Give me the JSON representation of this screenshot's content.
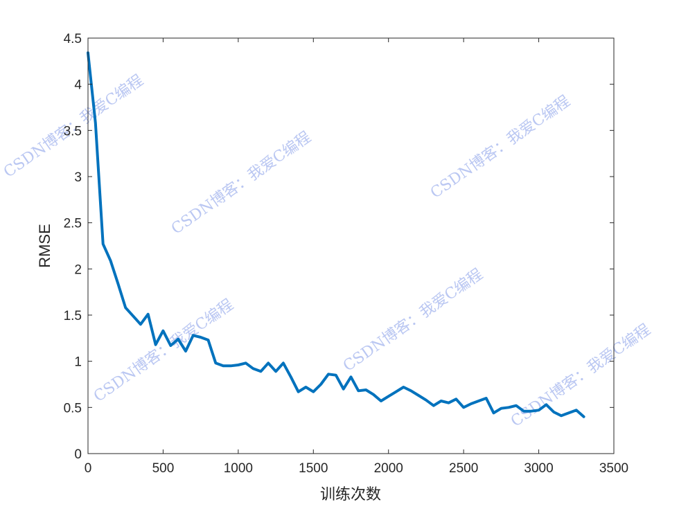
{
  "chart_data": {
    "type": "line",
    "xlabel": "训练次数",
    "ylabel": "RMSE",
    "xlim": [
      0,
      3500
    ],
    "ylim": [
      0,
      4.5
    ],
    "x_ticks": [
      0,
      500,
      1000,
      1500,
      2000,
      2500,
      3000,
      3500
    ],
    "y_ticks": [
      0,
      0.5,
      1,
      1.5,
      2,
      2.5,
      3,
      3.5,
      4,
      4.5
    ],
    "x_tick_labels": [
      "0",
      "500",
      "1000",
      "1500",
      "2000",
      "2500",
      "3000",
      "3500"
    ],
    "y_tick_labels": [
      "0",
      "0.5",
      "1",
      "1.5",
      "2",
      "2.5",
      "3",
      "3.5",
      "4",
      "4.5"
    ],
    "grid": false,
    "color": "#0072BD",
    "series": [
      {
        "x": [
          0,
          50,
          100,
          150,
          200,
          250,
          300,
          350,
          400,
          450,
          500,
          550,
          600,
          650,
          700,
          750,
          800,
          850,
          900,
          950,
          1000,
          1050,
          1100,
          1150,
          1200,
          1250,
          1300,
          1350,
          1400,
          1450,
          1500,
          1550,
          1600,
          1650,
          1700,
          1750,
          1800,
          1850,
          1900,
          1950,
          2000,
          2050,
          2100,
          2150,
          2200,
          2250,
          2300,
          2350,
          2400,
          2450,
          2500,
          2550,
          2600,
          2650,
          2700,
          2750,
          2800,
          2850,
          2900,
          2950,
          3000,
          3050,
          3100,
          3150,
          3200,
          3250,
          3300
        ],
        "y": [
          4.34,
          3.58,
          2.27,
          2.09,
          1.84,
          1.58,
          1.49,
          1.4,
          1.51,
          1.18,
          1.33,
          1.17,
          1.24,
          1.11,
          1.28,
          1.26,
          1.23,
          0.98,
          0.95,
          0.95,
          0.96,
          0.98,
          0.92,
          0.89,
          0.98,
          0.89,
          0.98,
          0.83,
          0.67,
          0.72,
          0.67,
          0.75,
          0.86,
          0.85,
          0.7,
          0.83,
          0.68,
          0.69,
          0.64,
          0.57,
          0.62,
          0.67,
          0.72,
          0.68,
          0.63,
          0.58,
          0.52,
          0.57,
          0.55,
          0.59,
          0.5,
          0.54,
          0.57,
          0.6,
          0.44,
          0.49,
          0.5,
          0.52,
          0.46,
          0.46,
          0.47,
          0.53,
          0.45,
          0.41,
          0.44,
          0.47,
          0.4
        ]
      }
    ]
  },
  "watermarks": [
    "CSDN博客：我爱C编程",
    "CSDN博客：我爱C编程",
    "CSDN博客：我爱C编程",
    "CSDN博客：我爱C编程",
    "CSDN博客：我爱C编程",
    "CSDN博客：我爱C编程"
  ]
}
